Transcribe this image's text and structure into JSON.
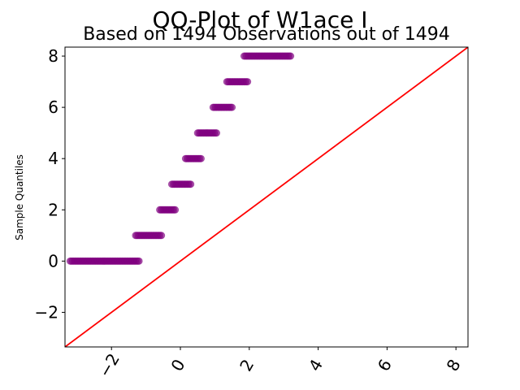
{
  "chart_data": {
    "type": "scatter",
    "title": "QQ-Plot of W1ace I",
    "subtitle": "Based on 1494 Observations out of 1494",
    "xlabel": "",
    "ylabel": "Sample Quantiles",
    "xlim": [
      -3.35,
      8.35
    ],
    "ylim": [
      -3.35,
      8.35
    ],
    "xticks": [
      -2,
      0,
      2,
      4,
      6,
      8
    ],
    "xtick_labels": [
      "−2",
      "0",
      "2",
      "4",
      "6",
      "8"
    ],
    "yticks": [
      -2,
      0,
      2,
      4,
      6,
      8
    ],
    "ytick_labels": [
      "−2",
      "0",
      "2",
      "4",
      "6",
      "8"
    ],
    "grid": false,
    "point_color": "#800080",
    "line_color": "#ff0000",
    "reference_line": {
      "x": [
        -3.35,
        8.35
      ],
      "y": [
        -3.35,
        8.35
      ]
    },
    "series": [
      {
        "y": 0,
        "x_start": -3.2,
        "x_end": -1.2
      },
      {
        "y": 1,
        "x_start": -1.3,
        "x_end": -0.55
      },
      {
        "y": 2,
        "x_start": -0.6,
        "x_end": -0.15
      },
      {
        "y": 3,
        "x_start": -0.25,
        "x_end": 0.3
      },
      {
        "y": 4,
        "x_start": 0.15,
        "x_end": 0.6
      },
      {
        "y": 5,
        "x_start": 0.5,
        "x_end": 1.05
      },
      {
        "y": 6,
        "x_start": 0.95,
        "x_end": 1.5
      },
      {
        "y": 7,
        "x_start": 1.35,
        "x_end": 1.95
      },
      {
        "y": 8,
        "x_start": 1.85,
        "x_end": 3.2
      }
    ]
  }
}
